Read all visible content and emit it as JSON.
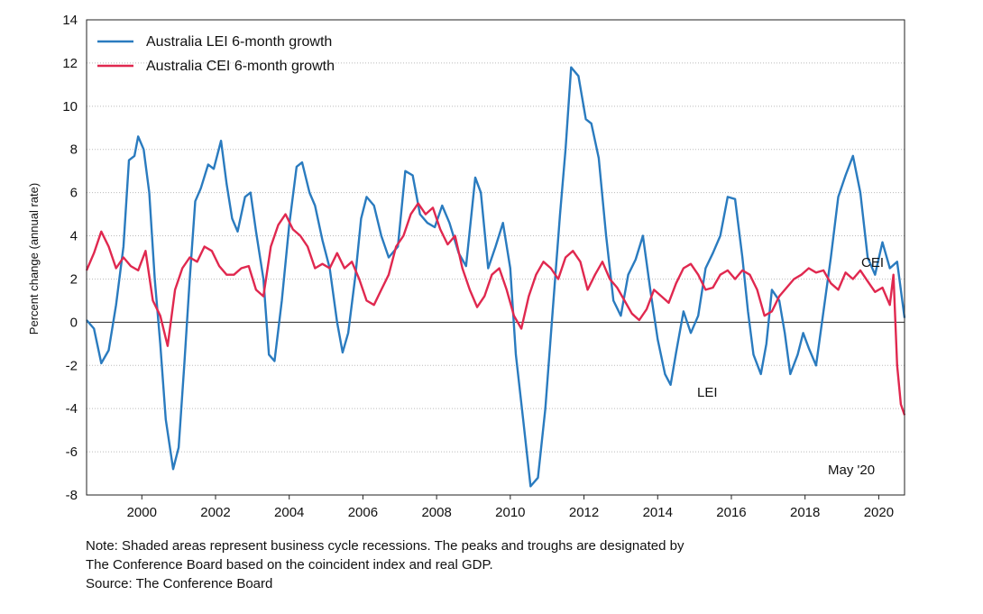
{
  "chart_data": {
    "type": "line",
    "ylabel": "Percent change (annual rate)",
    "ylim": [
      -8,
      14
    ],
    "yticks": [
      -8,
      -6,
      -4,
      -2,
      0,
      2,
      4,
      6,
      8,
      10,
      12,
      14
    ],
    "xlim": [
      1998.5,
      2020.7
    ],
    "xticks": [
      2000,
      2002,
      2004,
      2006,
      2008,
      2010,
      2012,
      2014,
      2016,
      2018,
      2020
    ],
    "grid": "horizontal dotted",
    "legend_position": "top-left",
    "series": [
      {
        "name": "Australia LEI 6-month growth",
        "label": "LEI",
        "color": "#2a7bbf",
        "points": [
          [
            1998.5,
            0.1
          ],
          [
            1998.7,
            -0.3
          ],
          [
            1998.9,
            -1.9
          ],
          [
            1999.1,
            -1.3
          ],
          [
            1999.3,
            0.8
          ],
          [
            1999.5,
            3.5
          ],
          [
            1999.65,
            7.5
          ],
          [
            1999.8,
            7.7
          ],
          [
            1999.9,
            8.6
          ],
          [
            2000.05,
            8.0
          ],
          [
            2000.2,
            6.0
          ],
          [
            2000.35,
            2.0
          ],
          [
            2000.5,
            -1.0
          ],
          [
            2000.65,
            -4.5
          ],
          [
            2000.85,
            -6.8
          ],
          [
            2001.0,
            -5.8
          ],
          [
            2001.15,
            -2.0
          ],
          [
            2001.3,
            2.0
          ],
          [
            2001.45,
            5.6
          ],
          [
            2001.6,
            6.2
          ],
          [
            2001.8,
            7.3
          ],
          [
            2001.95,
            7.1
          ],
          [
            2002.15,
            8.4
          ],
          [
            2002.3,
            6.4
          ],
          [
            2002.45,
            4.8
          ],
          [
            2002.6,
            4.2
          ],
          [
            2002.8,
            5.8
          ],
          [
            2002.95,
            6.0
          ],
          [
            2003.1,
            4.2
          ],
          [
            2003.3,
            2.0
          ],
          [
            2003.45,
            -1.5
          ],
          [
            2003.6,
            -1.8
          ],
          [
            2003.8,
            1.0
          ],
          [
            2004.0,
            4.5
          ],
          [
            2004.2,
            7.2
          ],
          [
            2004.35,
            7.4
          ],
          [
            2004.55,
            6.0
          ],
          [
            2004.7,
            5.4
          ],
          [
            2004.9,
            3.8
          ],
          [
            2005.1,
            2.5
          ],
          [
            2005.3,
            0.0
          ],
          [
            2005.45,
            -1.4
          ],
          [
            2005.6,
            -0.5
          ],
          [
            2005.8,
            2.2
          ],
          [
            2005.95,
            4.8
          ],
          [
            2006.1,
            5.8
          ],
          [
            2006.3,
            5.4
          ],
          [
            2006.5,
            4.0
          ],
          [
            2006.7,
            3.0
          ],
          [
            2006.95,
            3.5
          ],
          [
            2007.15,
            7.0
          ],
          [
            2007.35,
            6.8
          ],
          [
            2007.55,
            5.0
          ],
          [
            2007.75,
            4.6
          ],
          [
            2007.95,
            4.4
          ],
          [
            2008.15,
            5.4
          ],
          [
            2008.35,
            4.6
          ],
          [
            2008.6,
            3.2
          ],
          [
            2008.8,
            2.6
          ],
          [
            2009.05,
            6.7
          ],
          [
            2009.2,
            6.0
          ],
          [
            2009.4,
            2.5
          ],
          [
            2009.6,
            3.5
          ],
          [
            2009.8,
            4.6
          ],
          [
            2010.0,
            2.5
          ],
          [
            2010.15,
            -1.5
          ],
          [
            2010.35,
            -4.5
          ],
          [
            2010.55,
            -7.6
          ],
          [
            2010.75,
            -7.2
          ],
          [
            2010.95,
            -4.0
          ],
          [
            2011.15,
            0.5
          ],
          [
            2011.35,
            5.0
          ],
          [
            2011.5,
            8.0
          ],
          [
            2011.65,
            11.8
          ],
          [
            2011.85,
            11.4
          ],
          [
            2012.05,
            9.4
          ],
          [
            2012.2,
            9.2
          ],
          [
            2012.4,
            7.6
          ],
          [
            2012.6,
            4.0
          ],
          [
            2012.8,
            1.0
          ],
          [
            2013.0,
            0.3
          ],
          [
            2013.2,
            2.2
          ],
          [
            2013.4,
            2.9
          ],
          [
            2013.6,
            4.0
          ],
          [
            2013.8,
            1.5
          ],
          [
            2014.0,
            -0.8
          ],
          [
            2014.2,
            -2.4
          ],
          [
            2014.35,
            -2.9
          ],
          [
            2014.5,
            -1.4
          ],
          [
            2014.7,
            0.5
          ],
          [
            2014.9,
            -0.5
          ],
          [
            2015.1,
            0.3
          ],
          [
            2015.3,
            2.5
          ],
          [
            2015.5,
            3.2
          ],
          [
            2015.7,
            4.0
          ],
          [
            2015.9,
            5.8
          ],
          [
            2016.1,
            5.7
          ],
          [
            2016.3,
            3.0
          ],
          [
            2016.45,
            0.5
          ],
          [
            2016.6,
            -1.5
          ],
          [
            2016.8,
            -2.4
          ],
          [
            2016.95,
            -1.0
          ],
          [
            2017.1,
            1.5
          ],
          [
            2017.3,
            1.0
          ],
          [
            2017.45,
            -0.5
          ],
          [
            2017.6,
            -2.4
          ],
          [
            2017.8,
            -1.5
          ],
          [
            2017.95,
            -0.5
          ],
          [
            2018.1,
            -1.2
          ],
          [
            2018.3,
            -2.0
          ],
          [
            2018.5,
            0.5
          ],
          [
            2018.7,
            3.0
          ],
          [
            2018.9,
            5.8
          ],
          [
            2019.1,
            6.8
          ],
          [
            2019.3,
            7.7
          ],
          [
            2019.5,
            6.0
          ],
          [
            2019.7,
            3.0
          ],
          [
            2019.9,
            2.2
          ],
          [
            2020.1,
            3.7
          ],
          [
            2020.3,
            2.5
          ],
          [
            2020.5,
            2.8
          ],
          [
            2020.7,
            0.2
          ]
        ]
      },
      {
        "name": "Australia CEI 6-month growth",
        "label": "CEI",
        "color": "#e0284f",
        "points": [
          [
            1998.5,
            2.4
          ],
          [
            1998.7,
            3.2
          ],
          [
            1998.9,
            4.2
          ],
          [
            1999.1,
            3.5
          ],
          [
            1999.3,
            2.5
          ],
          [
            1999.5,
            3.0
          ],
          [
            1999.7,
            2.6
          ],
          [
            1999.9,
            2.4
          ],
          [
            2000.1,
            3.3
          ],
          [
            2000.3,
            1.0
          ],
          [
            2000.5,
            0.3
          ],
          [
            2000.7,
            -1.1
          ],
          [
            2000.9,
            1.5
          ],
          [
            2001.1,
            2.5
          ],
          [
            2001.3,
            3.0
          ],
          [
            2001.5,
            2.8
          ],
          [
            2001.7,
            3.5
          ],
          [
            2001.9,
            3.3
          ],
          [
            2002.1,
            2.6
          ],
          [
            2002.3,
            2.2
          ],
          [
            2002.5,
            2.2
          ],
          [
            2002.7,
            2.5
          ],
          [
            2002.9,
            2.6
          ],
          [
            2003.1,
            1.5
          ],
          [
            2003.3,
            1.2
          ],
          [
            2003.5,
            3.5
          ],
          [
            2003.7,
            4.5
          ],
          [
            2003.9,
            5.0
          ],
          [
            2004.1,
            4.3
          ],
          [
            2004.3,
            4.0
          ],
          [
            2004.5,
            3.5
          ],
          [
            2004.7,
            2.5
          ],
          [
            2004.9,
            2.7
          ],
          [
            2005.1,
            2.5
          ],
          [
            2005.3,
            3.2
          ],
          [
            2005.5,
            2.5
          ],
          [
            2005.7,
            2.8
          ],
          [
            2005.9,
            2.0
          ],
          [
            2006.1,
            1.0
          ],
          [
            2006.3,
            0.8
          ],
          [
            2006.5,
            1.5
          ],
          [
            2006.7,
            2.2
          ],
          [
            2006.9,
            3.5
          ],
          [
            2007.1,
            4.0
          ],
          [
            2007.3,
            5.0
          ],
          [
            2007.5,
            5.5
          ],
          [
            2007.7,
            5.0
          ],
          [
            2007.9,
            5.3
          ],
          [
            2008.1,
            4.3
          ],
          [
            2008.3,
            3.6
          ],
          [
            2008.5,
            4.0
          ],
          [
            2008.7,
            2.5
          ],
          [
            2008.9,
            1.5
          ],
          [
            2009.1,
            0.7
          ],
          [
            2009.3,
            1.2
          ],
          [
            2009.5,
            2.2
          ],
          [
            2009.7,
            2.5
          ],
          [
            2009.9,
            1.5
          ],
          [
            2010.1,
            0.3
          ],
          [
            2010.3,
            -0.3
          ],
          [
            2010.5,
            1.2
          ],
          [
            2010.7,
            2.2
          ],
          [
            2010.9,
            2.8
          ],
          [
            2011.1,
            2.5
          ],
          [
            2011.3,
            2.0
          ],
          [
            2011.5,
            3.0
          ],
          [
            2011.7,
            3.3
          ],
          [
            2011.9,
            2.8
          ],
          [
            2012.1,
            1.5
          ],
          [
            2012.3,
            2.2
          ],
          [
            2012.5,
            2.8
          ],
          [
            2012.7,
            2.0
          ],
          [
            2012.9,
            1.6
          ],
          [
            2013.1,
            1.0
          ],
          [
            2013.3,
            0.4
          ],
          [
            2013.5,
            0.1
          ],
          [
            2013.7,
            0.6
          ],
          [
            2013.9,
            1.5
          ],
          [
            2014.1,
            1.2
          ],
          [
            2014.3,
            0.9
          ],
          [
            2014.5,
            1.8
          ],
          [
            2014.7,
            2.5
          ],
          [
            2014.9,
            2.7
          ],
          [
            2015.1,
            2.2
          ],
          [
            2015.3,
            1.5
          ],
          [
            2015.5,
            1.6
          ],
          [
            2015.7,
            2.2
          ],
          [
            2015.9,
            2.4
          ],
          [
            2016.1,
            2.0
          ],
          [
            2016.3,
            2.4
          ],
          [
            2016.5,
            2.2
          ],
          [
            2016.7,
            1.5
          ],
          [
            2016.9,
            0.3
          ],
          [
            2017.1,
            0.5
          ],
          [
            2017.3,
            1.2
          ],
          [
            2017.5,
            1.6
          ],
          [
            2017.7,
            2.0
          ],
          [
            2017.9,
            2.2
          ],
          [
            2018.1,
            2.5
          ],
          [
            2018.3,
            2.3
          ],
          [
            2018.5,
            2.4
          ],
          [
            2018.7,
            1.8
          ],
          [
            2018.9,
            1.5
          ],
          [
            2019.1,
            2.3
          ],
          [
            2019.3,
            2.0
          ],
          [
            2019.5,
            2.4
          ],
          [
            2019.7,
            1.9
          ],
          [
            2019.9,
            1.4
          ],
          [
            2020.1,
            1.6
          ],
          [
            2020.3,
            0.8
          ],
          [
            2020.4,
            2.2
          ],
          [
            2020.5,
            -2.0
          ],
          [
            2020.6,
            -3.8
          ],
          [
            2020.7,
            -4.3
          ]
        ]
      }
    ],
    "annotations": [
      "CEI",
      "LEI",
      "May '20"
    ]
  },
  "notes": {
    "line1": "Note: Shaded areas represent business cycle recessions. The peaks and troughs are designated by",
    "line2": "The Conference Board based on the coincident index and real GDP.",
    "source": "Source: The Conference Board"
  }
}
